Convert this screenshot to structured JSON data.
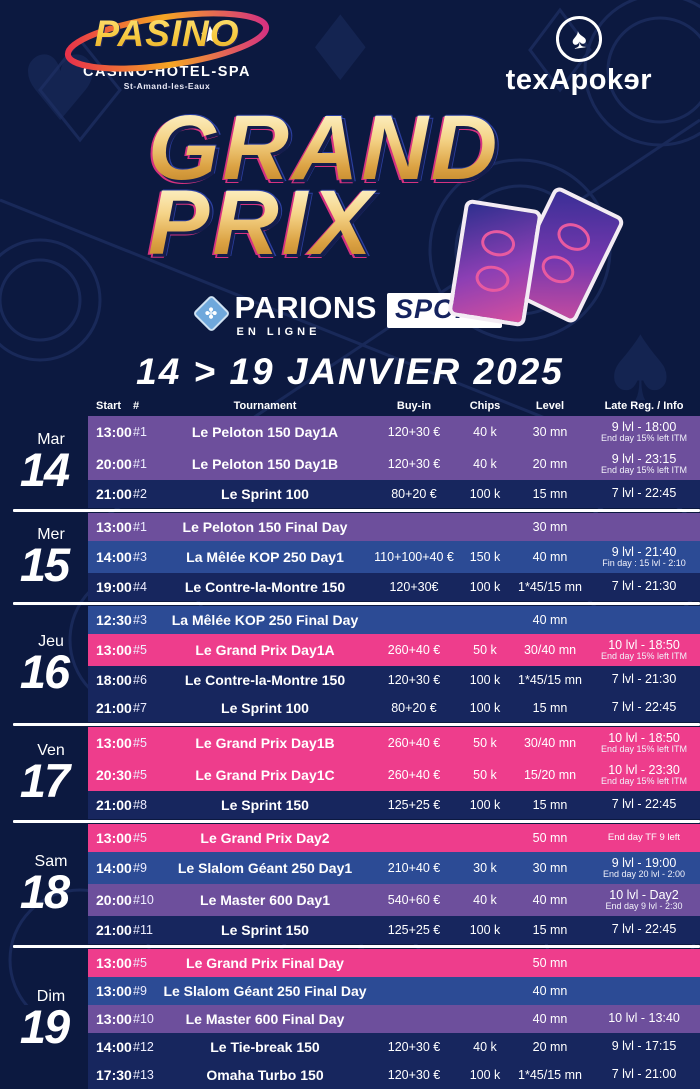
{
  "header": {
    "pasino": {
      "name": "PASINO",
      "subtitle": "CASINO-HOTEL-SPA",
      "city": "St-Amand-les-Eaux"
    },
    "texapoker": {
      "name": "texApokɘr",
      "spade": "♠"
    }
  },
  "title": {
    "line1": "GRAND",
    "line2": "PRIX"
  },
  "sponsor": {
    "icon_glyph": "✤",
    "parions": "PARIONS",
    "sport": "SPORT",
    "enligne": "EN LIGNE"
  },
  "date_banner": "14 > 19 JANVIER 2025",
  "colors": {
    "pink": "#ee3d8c",
    "purple": "#6d4f9c",
    "blue": "#2c4b95",
    "navy": "#17265e",
    "background": "#0c1940",
    "gold": "#e8b64c"
  },
  "table": {
    "headers": [
      "Start",
      "#",
      "Tournament",
      "Buy-in",
      "Chips",
      "Level",
      "Late Reg. / Info"
    ],
    "days": [
      {
        "day": "Mar",
        "num": "14",
        "rows": [
          {
            "start": "13:00",
            "num": "#1",
            "name": "Le Peloton 150 Day1A",
            "buyin": "120+30 €",
            "chips": "40 k",
            "level": "30 mn",
            "late": "9 lvl - 18:00",
            "late2": "End day 15% left ITM",
            "color": "purple"
          },
          {
            "start": "20:00",
            "num": "#1",
            "name": "Le Peloton 150 Day1B",
            "buyin": "120+30 €",
            "chips": "40 k",
            "level": "20 mn",
            "late": "9 lvl - 23:15",
            "late2": "End day 15% left ITM",
            "color": "purple"
          },
          {
            "start": "21:00",
            "num": "#2",
            "name": "Le Sprint 100",
            "buyin": "80+20 €",
            "chips": "100 k",
            "level": "15 mn",
            "late": "7 lvl - 22:45",
            "color": "navy"
          }
        ]
      },
      {
        "day": "Mer",
        "num": "15",
        "rows": [
          {
            "start": "13:00",
            "num": "#1",
            "name": "Le Peloton 150 Final Day",
            "buyin": "",
            "chips": "",
            "level": "30 mn",
            "late": "",
            "color": "purple"
          },
          {
            "start": "14:00",
            "num": "#3",
            "name": "La Mêlée KOP 250 Day1",
            "buyin": "110+100+40 €",
            "chips": "150 k",
            "level": "40 mn",
            "late": "9 lvl - 21:40",
            "late2": "Fin day : 15 lvl - 2:10",
            "color": "blue"
          },
          {
            "start": "19:00",
            "num": "#4",
            "name": "Le Contre-la-Montre 150",
            "buyin": "120+30€",
            "chips": "100 k",
            "level": "1*45/15 mn",
            "late": "7 lvl - 21:30",
            "color": "navy"
          }
        ]
      },
      {
        "day": "Jeu",
        "num": "16",
        "rows": [
          {
            "start": "12:30",
            "num": "#3",
            "name": "La Mêlée KOP 250 Final Day",
            "buyin": "",
            "chips": "",
            "level": "40 mn",
            "late": "",
            "color": "blue"
          },
          {
            "start": "13:00",
            "num": "#5",
            "name": "Le Grand Prix Day1A",
            "buyin": "260+40 €",
            "chips": "50 k",
            "level": "30/40 mn",
            "late": "10 lvl - 18:50",
            "late2": "End day 15% left ITM",
            "color": "pink"
          },
          {
            "start": "18:00",
            "num": "#6",
            "name": "Le Contre-la-Montre 150",
            "buyin": "120+30 €",
            "chips": "100 k",
            "level": "1*45/15 mn",
            "late": "7 lvl - 21:30",
            "color": "navy"
          },
          {
            "start": "21:00",
            "num": "#7",
            "name": "Le Sprint 100",
            "buyin": "80+20 €",
            "chips": "100 k",
            "level": "15 mn",
            "late": "7 lvl - 22:45",
            "color": "navy"
          }
        ]
      },
      {
        "day": "Ven",
        "num": "17",
        "rows": [
          {
            "start": "13:00",
            "num": "#5",
            "name": "Le Grand Prix Day1B",
            "buyin": "260+40 €",
            "chips": "50 k",
            "level": "30/40 mn",
            "late": "10 lvl - 18:50",
            "late2": "End day 15% left ITM",
            "color": "pink"
          },
          {
            "start": "20:30",
            "num": "#5",
            "name": "Le Grand Prix Day1C",
            "buyin": "260+40 €",
            "chips": "50 k",
            "level": "15/20 mn",
            "late": "10 lvl - 23:30",
            "late2": "End day 15% left ITM",
            "color": "pink"
          },
          {
            "start": "21:00",
            "num": "#8",
            "name": "Le Sprint 150",
            "buyin": "125+25 €",
            "chips": "100 k",
            "level": "15 mn",
            "late": "7 lvl - 22:45",
            "color": "navy"
          }
        ]
      },
      {
        "day": "Sam",
        "num": "18",
        "rows": [
          {
            "start": "13:00",
            "num": "#5",
            "name": "Le Grand Prix Day2",
            "buyin": "",
            "chips": "",
            "level": "50 mn",
            "late": "End day TF 9 left",
            "late_small": true,
            "color": "pink"
          },
          {
            "start": "14:00",
            "num": "#9",
            "name": "Le Slalom Géant 250 Day1",
            "buyin": "210+40 €",
            "chips": "30 k",
            "level": "30 mn",
            "late": "9 lvl - 19:00",
            "late2": "End day 20 lvl - 2:00",
            "color": "blue"
          },
          {
            "start": "20:00",
            "num": "#10",
            "name": "Le Master 600 Day1",
            "buyin": "540+60 €",
            "chips": "40 k",
            "level": "40 mn",
            "late": "10 lvl - Day2",
            "late2": "End day 9 lvl - 2:30",
            "color": "purple"
          },
          {
            "start": "21:00",
            "num": "#11",
            "name": "Le Sprint 150",
            "buyin": "125+25 €",
            "chips": "100 k",
            "level": "15 mn",
            "late": "7 lvl - 22:45",
            "color": "navy"
          }
        ]
      },
      {
        "day": "Dim",
        "num": "19",
        "rows": [
          {
            "start": "13:00",
            "num": "#5",
            "name": "Le Grand Prix Final Day",
            "buyin": "",
            "chips": "",
            "level": "50 mn",
            "late": "",
            "color": "pink"
          },
          {
            "start": "13:00",
            "num": "#9",
            "name": "Le Slalom Géant 250 Final Day",
            "buyin": "",
            "chips": "",
            "level": "40 mn",
            "late": "",
            "color": "blue"
          },
          {
            "start": "13:00",
            "num": "#10",
            "name": "Le Master 600 Final Day",
            "buyin": "",
            "chips": "",
            "level": "40 mn",
            "late": "10 lvl - 13:40",
            "color": "purple"
          },
          {
            "start": "14:00",
            "num": "#12",
            "name": "Le Tie-break 150",
            "buyin": "120+30 €",
            "chips": "40 k",
            "level": "20 mn",
            "late": "9 lvl - 17:15",
            "color": "navy"
          },
          {
            "start": "17:30",
            "num": "#13",
            "name": "Omaha Turbo 150",
            "buyin": "120+30 €",
            "chips": "100 k",
            "level": "1*45/15 mn",
            "late": "7 lvl - 21:00",
            "color": "navy"
          }
        ]
      }
    ]
  }
}
